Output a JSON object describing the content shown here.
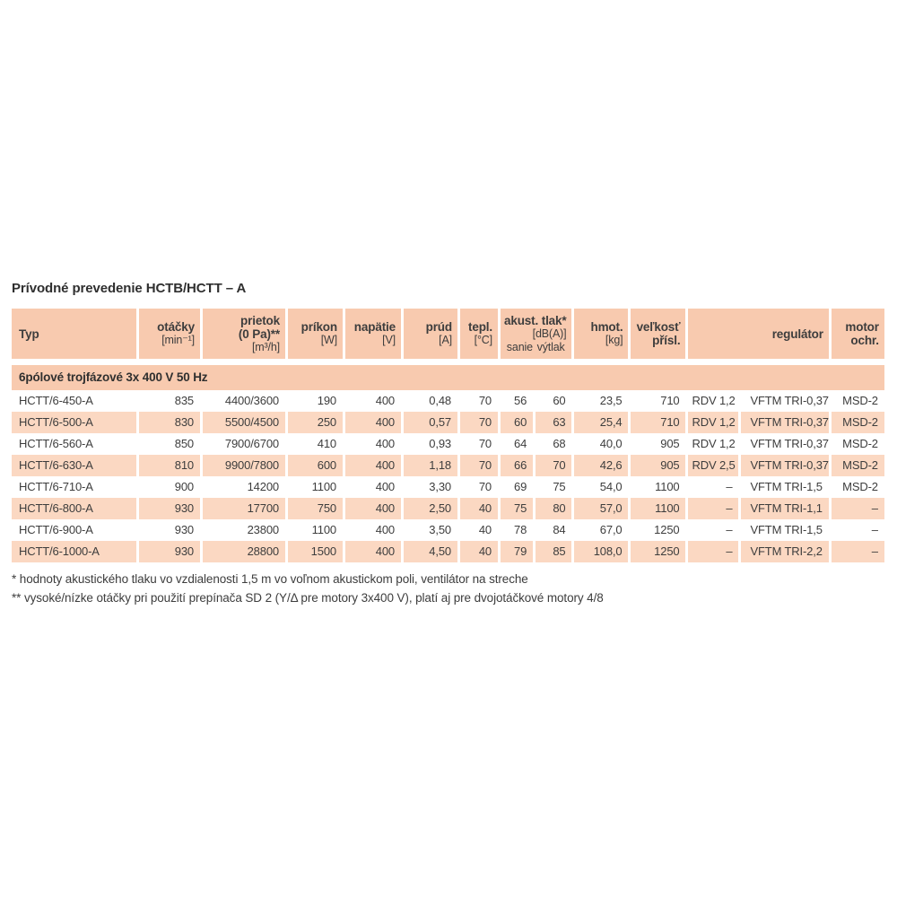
{
  "page": {
    "title": "Prívodné prevedenie HCTB/HCTT – A"
  },
  "colors": {
    "header_bg": "#f8caaf",
    "row_bg": "#fbd8c2"
  },
  "table": {
    "header": {
      "typ": {
        "label": "Typ"
      },
      "otacky": {
        "label": "otáčky",
        "unit": "[min⁻¹]"
      },
      "prietok": {
        "label": "prietok",
        "label2": "(0 Pa)**",
        "unit": "[m³/h]"
      },
      "prikon": {
        "label": "príkon",
        "unit": "[W]"
      },
      "napatie": {
        "label": "napätie",
        "unit": "[V]"
      },
      "prud": {
        "label": "prúd",
        "unit": "[A]"
      },
      "tepl": {
        "label": "tepl.",
        "unit": "[°C]"
      },
      "akust": {
        "label": "akust. tlak*",
        "unit": "[dB(A)]",
        "sub1": "sanie",
        "sub2": "výtlak"
      },
      "hmot": {
        "label": "hmot.",
        "unit": "[kg]"
      },
      "velkost": {
        "label": "veľkosť",
        "label2": "přísl."
      },
      "regulator": {
        "label": "regulátor"
      },
      "motor": {
        "label": "motor",
        "label2": "ochr."
      }
    },
    "columns": [
      {
        "key": "typ",
        "align": "left"
      },
      {
        "key": "otacky",
        "align": "right"
      },
      {
        "key": "prietok",
        "align": "right"
      },
      {
        "key": "prikon",
        "align": "right"
      },
      {
        "key": "napatie",
        "align": "right"
      },
      {
        "key": "prud",
        "align": "right"
      },
      {
        "key": "tepl",
        "align": "right"
      },
      {
        "key": "sanie",
        "align": "right"
      },
      {
        "key": "vytlak",
        "align": "right"
      },
      {
        "key": "hmot",
        "align": "right"
      },
      {
        "key": "velkost",
        "align": "right"
      },
      {
        "key": "rdv",
        "align": "left"
      },
      {
        "key": "vftm",
        "align": "left"
      },
      {
        "key": "motor",
        "align": "right"
      }
    ],
    "section": "6pólové trojfázové 3x 400 V 50 Hz",
    "rows": [
      [
        "HCTT/6-450-A",
        "835",
        "4400/3600",
        "190",
        "400",
        "0,48",
        "70",
        "56",
        "60",
        "23,5",
        "710",
        "RDV 1,2",
        "VFTM TRI-0,37",
        "MSD-2"
      ],
      [
        "HCTT/6-500-A",
        "830",
        "5500/4500",
        "250",
        "400",
        "0,57",
        "70",
        "60",
        "63",
        "25,4",
        "710",
        "RDV 1,2",
        "VFTM TRI-0,37",
        "MSD-2"
      ],
      [
        "HCTT/6-560-A",
        "850",
        "7900/6700",
        "410",
        "400",
        "0,93",
        "70",
        "64",
        "68",
        "40,0",
        "905",
        "RDV 1,2",
        "VFTM TRI-0,37",
        "MSD-2"
      ],
      [
        "HCTT/6-630-A",
        "810",
        "9900/7800",
        "600",
        "400",
        "1,18",
        "70",
        "66",
        "70",
        "42,6",
        "905",
        "RDV 2,5",
        "VFTM TRI-0,37",
        "MSD-2"
      ],
      [
        "HCTT/6-710-A",
        "900",
        "14200",
        "1100",
        "400",
        "3,30",
        "70",
        "69",
        "75",
        "54,0",
        "1100",
        {
          "v": "–",
          "a": "right"
        },
        "VFTM TRI-1,5",
        "MSD-2"
      ],
      [
        "HCTT/6-800-A",
        "930",
        "17700",
        "750",
        "400",
        "2,50",
        "40",
        "75",
        "80",
        "57,0",
        "1100",
        {
          "v": "–",
          "a": "right"
        },
        "VFTM TRI-1,1",
        "–"
      ],
      [
        "HCTT/6-900-A",
        "930",
        "23800",
        "1100",
        "400",
        "3,50",
        "40",
        "78",
        "84",
        "67,0",
        "1250",
        {
          "v": "–",
          "a": "right"
        },
        "VFTM TRI-1,5",
        "–"
      ],
      [
        "HCTT/6-1000-A",
        "930",
        "28800",
        "1500",
        "400",
        "4,50",
        "40",
        "79",
        "85",
        "108,0",
        "1250",
        {
          "v": "–",
          "a": "right"
        },
        "VFTM TRI-2,2",
        "–"
      ]
    ]
  },
  "footnotes": [
    "* hodnoty akustického tlaku vo vzdialenosti 1,5 m vo voľnom akustickom poli, ventilátor na streche",
    "** vysoké/nízke otáčky pri použití prepínača SD 2 (Y/Δ pre motory 3x400 V), platí aj pre dvojotáčkové motory 4/8"
  ]
}
